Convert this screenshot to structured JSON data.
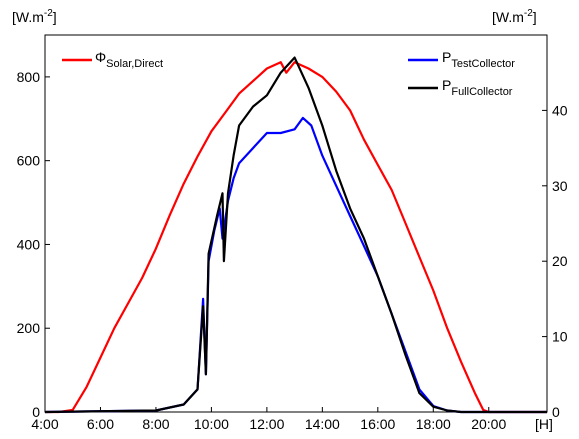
{
  "chart_data": {
    "type": "line",
    "left_unit": {
      "base": "[W.m",
      "sup": "-2",
      "close": "]"
    },
    "right_unit": {
      "base": "[W.m",
      "sup": "-2",
      "close": "]"
    },
    "x_unit": "[H]",
    "xlim": [
      4,
      22.1
    ],
    "ylim_left": [
      0,
      900
    ],
    "ylim_right": [
      0,
      50
    ],
    "y_left_ticks": [
      {
        "value": 800,
        "label": "800"
      },
      {
        "value": 600,
        "label": "600"
      },
      {
        "value": 400,
        "label": "400"
      },
      {
        "value": 200,
        "label": "200"
      },
      {
        "value": 0,
        "label": "0"
      }
    ],
    "y_right_ticks": [
      {
        "value": 40,
        "label": "40"
      },
      {
        "value": 30,
        "label": "30"
      },
      {
        "value": 20,
        "label": "20"
      },
      {
        "value": 10,
        "label": "10"
      },
      {
        "value": 0,
        "label": "0"
      }
    ],
    "x_ticks": [
      {
        "value": 4,
        "label": "4:00"
      },
      {
        "value": 6,
        "label": "6:00"
      },
      {
        "value": 8,
        "label": "8:00"
      },
      {
        "value": 10,
        "label": "10:00"
      },
      {
        "value": 12,
        "label": "12:00"
      },
      {
        "value": 14,
        "label": "14:00"
      },
      {
        "value": 16,
        "label": "16:00"
      },
      {
        "value": 18,
        "label": "18:00"
      },
      {
        "value": 20,
        "label": "20:00"
      }
    ],
    "series": [
      {
        "name": "Φ",
        "name_sub": "Solar,Direct",
        "axis": "left",
        "color": "#ff0000",
        "points": [
          [
            4,
            0
          ],
          [
            4.5,
            0
          ],
          [
            5,
            5
          ],
          [
            5.5,
            60
          ],
          [
            6,
            130
          ],
          [
            6.5,
            200
          ],
          [
            7,
            260
          ],
          [
            7.5,
            320
          ],
          [
            8,
            390
          ],
          [
            8.5,
            470
          ],
          [
            9,
            545
          ],
          [
            9.5,
            610
          ],
          [
            10,
            670
          ],
          [
            10.5,
            715
          ],
          [
            11,
            760
          ],
          [
            11.5,
            790
          ],
          [
            12,
            820
          ],
          [
            12.5,
            835
          ],
          [
            12.7,
            810
          ],
          [
            13,
            835
          ],
          [
            13.5,
            820
          ],
          [
            14,
            800
          ],
          [
            14.5,
            765
          ],
          [
            15,
            720
          ],
          [
            15.5,
            650
          ],
          [
            16,
            590
          ],
          [
            16.5,
            530
          ],
          [
            17,
            450
          ],
          [
            17.5,
            370
          ],
          [
            18,
            290
          ],
          [
            18.5,
            200
          ],
          [
            19,
            120
          ],
          [
            19.5,
            45
          ],
          [
            19.8,
            5
          ],
          [
            20,
            0
          ],
          [
            22.1,
            0
          ]
        ]
      },
      {
        "name": "P",
        "name_sub": "TestCollector",
        "axis": "right",
        "color": "#0000ff",
        "points": [
          [
            4,
            0
          ],
          [
            8,
            0.2
          ],
          [
            9,
            1
          ],
          [
            9.5,
            3
          ],
          [
            9.7,
            15
          ],
          [
            9.8,
            5
          ],
          [
            9.9,
            20
          ],
          [
            10.1,
            24
          ],
          [
            10.3,
            27
          ],
          [
            10.4,
            23
          ],
          [
            10.6,
            28
          ],
          [
            10.8,
            31
          ],
          [
            11,
            33
          ],
          [
            11.5,
            35
          ],
          [
            12,
            37
          ],
          [
            12.5,
            37
          ],
          [
            13,
            37.5
          ],
          [
            13.3,
            39
          ],
          [
            13.6,
            38
          ],
          [
            14,
            34
          ],
          [
            14.5,
            30
          ],
          [
            15,
            26
          ],
          [
            15.5,
            22
          ],
          [
            16,
            18
          ],
          [
            16.5,
            13
          ],
          [
            17,
            8
          ],
          [
            17.5,
            3
          ],
          [
            18,
            0.8
          ],
          [
            18.5,
            0.2
          ],
          [
            19,
            0
          ],
          [
            22.1,
            0
          ]
        ]
      },
      {
        "name": "P",
        "name_sub": "FullCollector",
        "axis": "right",
        "color": "#000000",
        "points": [
          [
            4,
            0
          ],
          [
            8,
            0.2
          ],
          [
            9,
            1
          ],
          [
            9.5,
            3
          ],
          [
            9.7,
            14
          ],
          [
            9.8,
            5
          ],
          [
            9.9,
            21
          ],
          [
            10.2,
            26
          ],
          [
            10.4,
            29
          ],
          [
            10.45,
            20
          ],
          [
            10.6,
            29
          ],
          [
            10.8,
            34
          ],
          [
            11,
            38
          ],
          [
            11.5,
            40.5
          ],
          [
            12,
            42
          ],
          [
            12.5,
            45
          ],
          [
            13,
            47
          ],
          [
            13.5,
            43
          ],
          [
            14,
            38
          ],
          [
            14.5,
            32
          ],
          [
            15,
            27
          ],
          [
            15.5,
            23
          ],
          [
            16,
            18
          ],
          [
            16.5,
            13
          ],
          [
            17,
            7.5
          ],
          [
            17.5,
            2.5
          ],
          [
            18,
            0.7
          ],
          [
            18.5,
            0.2
          ],
          [
            19,
            0
          ],
          [
            22.1,
            0
          ]
        ]
      }
    ]
  }
}
